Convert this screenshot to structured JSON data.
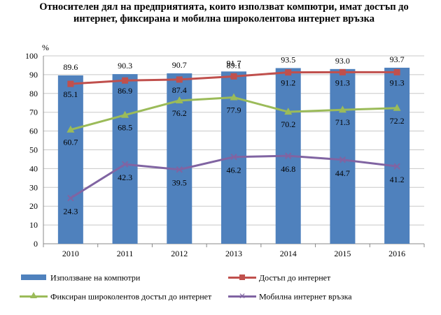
{
  "title": {
    "line1": "Относителен дял на предприятията, които използват компютри, имат достъп до",
    "line2": "интернет, фиксирана и мобилна широколентова интернет връзка"
  },
  "chart_data": {
    "type": "bar",
    "categories": [
      "2010",
      "2011",
      "2012",
      "2013",
      "2014",
      "2015",
      "2016"
    ],
    "y_unit_label": "%",
    "ylim": [
      0,
      100
    ],
    "yticks": [
      0,
      10,
      20,
      30,
      40,
      50,
      60,
      70,
      80,
      90,
      100
    ],
    "grid": true,
    "legend_position": "bottom",
    "series": [
      {
        "name": "Използване на компютри",
        "type": "bar",
        "color": "#4F81BD",
        "values": [
          89.6,
          90.3,
          90.7,
          91.7,
          93.5,
          93.0,
          93.7
        ]
      },
      {
        "name": "Достъп до интернет",
        "type": "line",
        "marker": "square",
        "color": "#C0504D",
        "values": [
          85.1,
          86.9,
          87.4,
          89.1,
          91.2,
          91.3,
          91.3
        ]
      },
      {
        "name": "Фиксиран широколентов достъп до интернет",
        "type": "line",
        "marker": "triangle",
        "color": "#9BBB59",
        "values": [
          60.7,
          68.5,
          76.2,
          77.9,
          70.2,
          71.3,
          72.2
        ]
      },
      {
        "name": "Мобилна интернет връзка",
        "type": "line",
        "marker": "x",
        "color": "#8064A2",
        "values": [
          24.3,
          42.3,
          39.5,
          46.2,
          46.8,
          44.7,
          41.2
        ]
      }
    ]
  }
}
